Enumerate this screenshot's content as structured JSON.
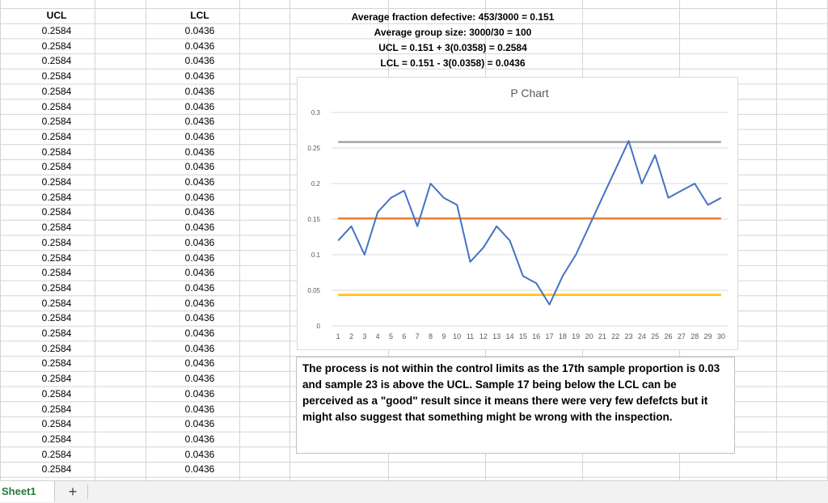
{
  "columns": {
    "ucl_header": "UCL",
    "lcl_header": "LCL",
    "ucl_values": [
      "0.2584",
      "0.2584",
      "0.2584",
      "0.2584",
      "0.2584",
      "0.2584",
      "0.2584",
      "0.2584",
      "0.2584",
      "0.2584",
      "0.2584",
      "0.2584",
      "0.2584",
      "0.2584",
      "0.2584",
      "0.2584",
      "0.2584",
      "0.2584",
      "0.2584",
      "0.2584",
      "0.2584",
      "0.2584",
      "0.2584",
      "0.2584",
      "0.2584",
      "0.2584",
      "0.2584",
      "0.2584",
      "0.2584",
      "0.2584"
    ],
    "lcl_values": [
      "0.0436",
      "0.0436",
      "0.0436",
      "0.0436",
      "0.0436",
      "0.0436",
      "0.0436",
      "0.0436",
      "0.0436",
      "0.0436",
      "0.0436",
      "0.0436",
      "0.0436",
      "0.0436",
      "0.0436",
      "0.0436",
      "0.0436",
      "0.0436",
      "0.0436",
      "0.0436",
      "0.0436",
      "0.0436",
      "0.0436",
      "0.0436",
      "0.0436",
      "0.0436",
      "0.0436",
      "0.0436",
      "0.0436",
      "0.0436"
    ]
  },
  "formulas": {
    "line1": "Average fraction defective: 453/3000 = 0.151",
    "line2": "Average group size: 3000/30 = 100",
    "line3": "UCL = 0.151 + 3(0.0358) = 0.2584",
    "line4": "LCL = 0.151 - 3(0.0358) = 0.0436"
  },
  "chart_data": {
    "type": "line",
    "title": "P Chart",
    "x": [
      1,
      2,
      3,
      4,
      5,
      6,
      7,
      8,
      9,
      10,
      11,
      12,
      13,
      14,
      15,
      16,
      17,
      18,
      19,
      20,
      21,
      22,
      23,
      24,
      25,
      26,
      27,
      28,
      29,
      30
    ],
    "ylim": [
      0,
      0.3
    ],
    "yticks": [
      "0",
      "0.05",
      "0.1",
      "0.15",
      "0.2",
      "0.25",
      "0.3"
    ],
    "grid": true,
    "series": [
      {
        "values": [
          0.12,
          0.14,
          0.1,
          0.16,
          0.18,
          0.19,
          0.14,
          0.2,
          0.18,
          0.17,
          0.09,
          0.11,
          0.14,
          0.12,
          0.07,
          0.06,
          0.03,
          0.07,
          0.1,
          0.14,
          0.18,
          0.22,
          0.26,
          0.2,
          0.24,
          0.18,
          0.19,
          0.2,
          0.17,
          0.18
        ],
        "color": "#4472C4"
      },
      {
        "values": [
          0.151,
          0.151,
          0.151,
          0.151,
          0.151,
          0.151,
          0.151,
          0.151,
          0.151,
          0.151,
          0.151,
          0.151,
          0.151,
          0.151,
          0.151,
          0.151,
          0.151,
          0.151,
          0.151,
          0.151,
          0.151,
          0.151,
          0.151,
          0.151,
          0.151,
          0.151,
          0.151,
          0.151,
          0.151,
          0.151
        ],
        "color": "#ED7D31"
      },
      {
        "values": [
          0.2584,
          0.2584,
          0.2584,
          0.2584,
          0.2584,
          0.2584,
          0.2584,
          0.2584,
          0.2584,
          0.2584,
          0.2584,
          0.2584,
          0.2584,
          0.2584,
          0.2584,
          0.2584,
          0.2584,
          0.2584,
          0.2584,
          0.2584,
          0.2584,
          0.2584,
          0.2584,
          0.2584,
          0.2584,
          0.2584,
          0.2584,
          0.2584,
          0.2584,
          0.2584
        ],
        "color": "#A5A5A5"
      },
      {
        "values": [
          0.0436,
          0.0436,
          0.0436,
          0.0436,
          0.0436,
          0.0436,
          0.0436,
          0.0436,
          0.0436,
          0.0436,
          0.0436,
          0.0436,
          0.0436,
          0.0436,
          0.0436,
          0.0436,
          0.0436,
          0.0436,
          0.0436,
          0.0436,
          0.0436,
          0.0436,
          0.0436,
          0.0436,
          0.0436,
          0.0436,
          0.0436,
          0.0436,
          0.0436,
          0.0436
        ],
        "color": "#FFC000"
      }
    ]
  },
  "note": "The process is not within the control limits as the 17th sample proportion is 0.03 and sample 23 is above the UCL. Sample 17 being below the LCL can be perceived as a \"good\" result since it means there were very few defefcts but it might also suggest that something might be wrong with the inspection.",
  "tabs": {
    "sheet_name": "Sheet1",
    "add_label": "+"
  }
}
